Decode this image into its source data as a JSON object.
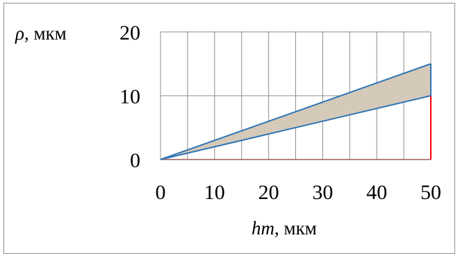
{
  "chart_data": {
    "type": "area",
    "title": "",
    "xlabel": {
      "symbol": "hm",
      "unit": ", мкм"
    },
    "ylabel": {
      "symbol": "ρ",
      "unit": ", мкм"
    },
    "xlim": [
      0,
      50
    ],
    "ylim": [
      0,
      20
    ],
    "x_ticks": [
      0,
      10,
      20,
      30,
      40,
      50
    ],
    "y_ticks": [
      0,
      10,
      20
    ],
    "x_gridlines": [
      0,
      5,
      10,
      15,
      20,
      25,
      30,
      35,
      40,
      45,
      50
    ],
    "grid": true,
    "legend": "none",
    "series": [
      {
        "x": [
          0,
          50
        ],
        "values": [
          0,
          15
        ],
        "color": "#2e75b6"
      },
      {
        "x": [
          0,
          50
        ],
        "values": [
          0,
          10
        ],
        "color": "#2e75b6"
      }
    ],
    "fill_between": {
      "color": "#d9cfc0"
    },
    "marker_line": {
      "x": 50,
      "from": 0,
      "to": 10,
      "color": "#ff0000"
    },
    "zero_line_color": "#a05a5a"
  }
}
